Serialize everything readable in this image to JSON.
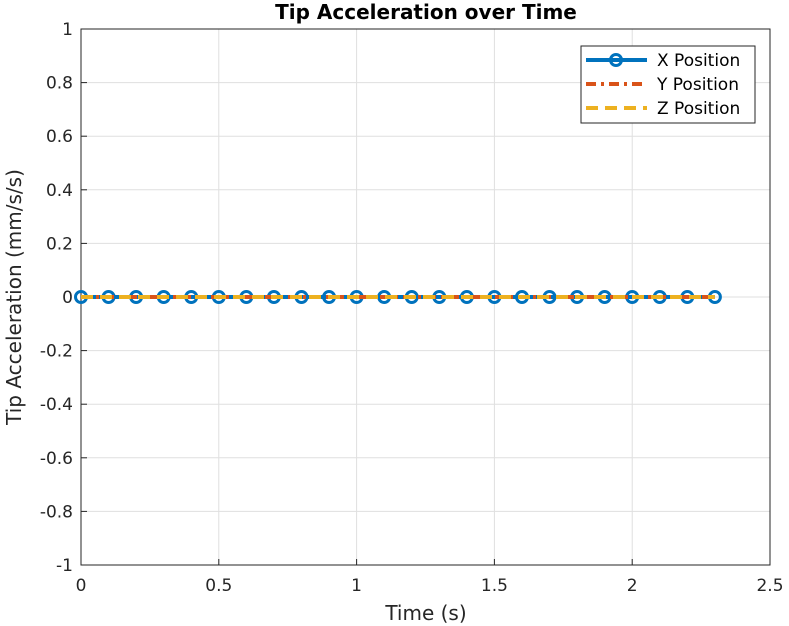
{
  "chart_data": {
    "type": "line",
    "title": "Tip Acceleration over Time",
    "xlabel": "Time (s)",
    "ylabel": "Tip Acceleration (mm/s/s)",
    "xlim": [
      0,
      2.5
    ],
    "ylim": [
      -1,
      1
    ],
    "grid": true,
    "legend_position": "top-right",
    "xticks": [
      "0",
      "0.5",
      "1",
      "1.5",
      "2",
      "2.5"
    ],
    "yticks": [
      "-1",
      "-0.8",
      "-0.6",
      "-0.4",
      "-0.2",
      "0",
      "0.2",
      "0.4",
      "0.6",
      "0.8",
      "1"
    ],
    "x": [
      0,
      0.1,
      0.2,
      0.3,
      0.4,
      0.5,
      0.6,
      0.7,
      0.8,
      0.9,
      1.0,
      1.1,
      1.2,
      1.3,
      1.4,
      1.5,
      1.6,
      1.7,
      1.8,
      1.9,
      2.0,
      2.1,
      2.2,
      2.3
    ],
    "series": [
      {
        "name": "X Position",
        "color": "#0072BD",
        "style": "solid-circle-markers",
        "values": [
          0,
          0,
          0,
          0,
          0,
          0,
          0,
          0,
          0,
          0,
          0,
          0,
          0,
          0,
          0,
          0,
          0,
          0,
          0,
          0,
          0,
          0,
          0,
          0
        ]
      },
      {
        "name": "Y Position",
        "color": "#D95319",
        "style": "dash-dot",
        "values": [
          0,
          0,
          0,
          0,
          0,
          0,
          0,
          0,
          0,
          0,
          0,
          0,
          0,
          0,
          0,
          0,
          0,
          0,
          0,
          0,
          0,
          0,
          0,
          0
        ]
      },
      {
        "name": "Z Position",
        "color": "#EDB120",
        "style": "dashed",
        "values": [
          0,
          0,
          0,
          0,
          0,
          0,
          0,
          0,
          0,
          0,
          0,
          0,
          0,
          0,
          0,
          0,
          0,
          0,
          0,
          0,
          0,
          0,
          0,
          0
        ]
      }
    ]
  }
}
